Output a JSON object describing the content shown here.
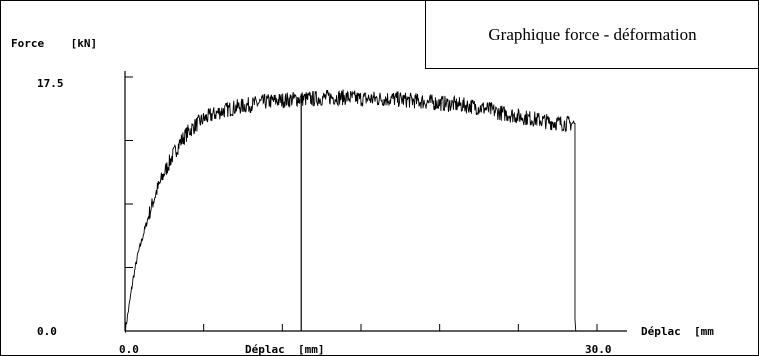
{
  "chart_data": {
    "type": "line",
    "title": "Graphique force - déformation",
    "ylabel": "Force    [kN]",
    "xlabel": "Déplac  [mm]",
    "xlabel_right": "Déplac  [mm",
    "xlim": [
      0.0,
      30.0
    ],
    "ylim": [
      0.0,
      17.5
    ],
    "x_tick_labels": [
      "0.0",
      "30.0"
    ],
    "y_tick_labels": [
      "0.0",
      "17.5"
    ],
    "grid": false,
    "marker_x": 11.2,
    "series": [
      {
        "x": [
          0.0,
          0.1,
          0.3,
          0.5,
          0.8,
          1.2,
          1.6,
          2.0,
          2.5,
          3.0,
          3.5,
          4.0,
          4.5,
          5.0,
          6.0,
          7.0,
          8.0,
          9.0,
          10.0,
          11.0,
          12.0,
          13.0,
          14.0,
          15.0,
          16.0,
          17.0,
          18.0,
          19.0,
          20.0,
          21.0,
          22.0,
          23.0,
          24.0,
          25.0,
          26.0,
          27.0,
          28.0,
          28.6,
          28.6,
          28.65
        ],
        "y": [
          0.0,
          0.6,
          2.0,
          3.5,
          5.2,
          6.8,
          8.3,
          9.6,
          10.9,
          12.0,
          13.0,
          13.7,
          14.2,
          14.6,
          15.1,
          15.4,
          15.6,
          15.8,
          15.9,
          16.0,
          16.0,
          16.1,
          16.1,
          16.0,
          16.0,
          16.0,
          15.9,
          15.8,
          15.7,
          15.6,
          15.5,
          15.3,
          15.0,
          14.8,
          14.6,
          14.4,
          14.3,
          14.3,
          0.8,
          0.0
        ]
      }
    ]
  }
}
